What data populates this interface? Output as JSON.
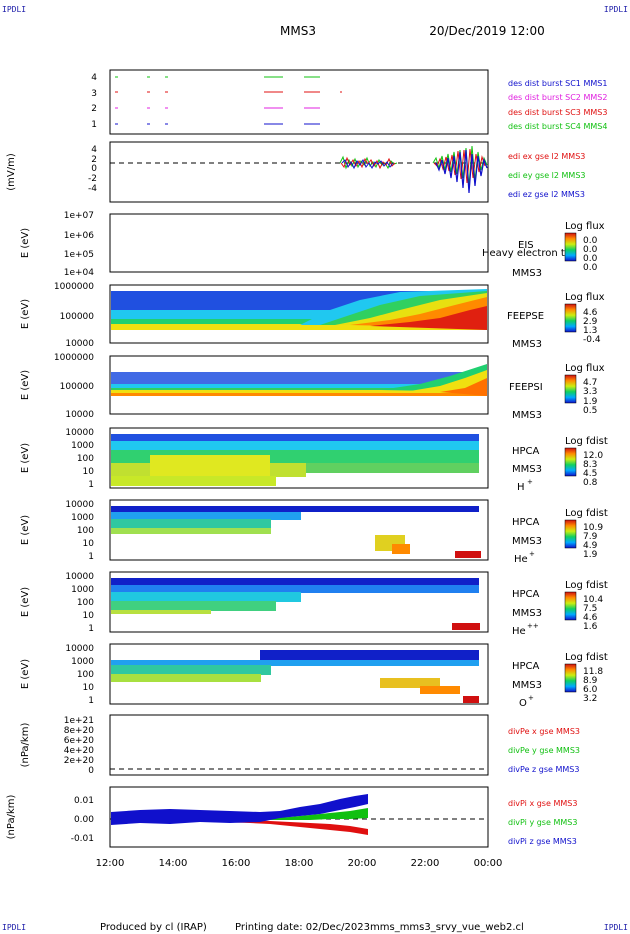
{
  "corners": {
    "top_left": "IPDLI",
    "top_right": "IPDLI",
    "bottom_left": "IPDLI",
    "bottom_right": "IPDLI"
  },
  "header": {
    "spacecraft": "MMS3",
    "datetime": "20/Dec/2019 12:00"
  },
  "footer": {
    "produced_by": "Produced by cl (IRAP)",
    "printing_date": "Printing date: 02/Dec/2023",
    "filename": "mms_mms3_srvy_vue_web2.cl"
  },
  "colors": {
    "blue": "#1010cc",
    "magenta": "#e020e0",
    "red": "#e01010",
    "green": "#10c010"
  },
  "x_axis": {
    "ticks": [
      "12:00",
      "14:00",
      "16:00",
      "18:00",
      "20:00",
      "22:00",
      "00:00"
    ]
  },
  "chart_data": [
    {
      "type": "scatter",
      "ylim": [
        0.5,
        4.5
      ],
      "yticks": [
        "1",
        "2",
        "3",
        "4"
      ],
      "legend": [
        {
          "text": "des dist burst SC1 MMS1",
          "color": "#1010cc"
        },
        {
          "text": "des dist burst SC2 MMS2",
          "color": "#e020e0"
        },
        {
          "text": "des dist burst SC3 MMS3",
          "color": "#e01010"
        },
        {
          "text": "des dist burst SC4 MMS4",
          "color": "#10c010"
        }
      ]
    },
    {
      "type": "line",
      "ylabel": "(mV/m)",
      "ylim": [
        -5,
        5
      ],
      "yticks": [
        "4",
        "2",
        "0",
        "-2",
        "-4"
      ],
      "legend": [
        {
          "text": "edi ex gse l2 MMS3",
          "color": "#e01010"
        },
        {
          "text": "edi ey gse l2 MMS3",
          "color": "#10c010"
        },
        {
          "text": "edi ez gse l2 MMS3",
          "color": "#1010cc"
        }
      ]
    },
    {
      "type": "heatmap",
      "ylabel": "E (eV)",
      "yticks": [
        "1e+07",
        "1e+06",
        "1e+05",
        "1e+04"
      ],
      "labels": [
        "EIS",
        "MMS3"
      ],
      "overlay": "Heavy electron to",
      "colorbar": {
        "title": "Log flux",
        "values": [
          "0.0",
          "0.0",
          "0.0",
          "0.0"
        ]
      }
    },
    {
      "type": "heatmap",
      "ylabel": "E (eV)",
      "yticks": [
        "1000000",
        "100000",
        "10000"
      ],
      "labels": [
        "FEEPSE",
        "MMS3"
      ],
      "colorbar": {
        "title": "Log flux",
        "values": [
          "4.6",
          "2.9",
          "1.3",
          "-0.4"
        ]
      }
    },
    {
      "type": "heatmap",
      "ylabel": "E (eV)",
      "yticks": [
        "1000000",
        "100000",
        "10000"
      ],
      "labels": [
        "FEEPSI",
        "MMS3"
      ],
      "colorbar": {
        "title": "Log flux",
        "values": [
          "4.7",
          "3.3",
          "1.9",
          "0.5"
        ]
      }
    },
    {
      "type": "heatmap",
      "ylabel": "E (eV)",
      "yticks": [
        "10000",
        "1000",
        "100",
        "10",
        "1"
      ],
      "labels": [
        "HPCA",
        "MMS3"
      ],
      "species": "H",
      "charge": "+",
      "colorbar": {
        "title": "Log fdist",
        "values": [
          "12.0",
          "8.3",
          "4.5",
          "0.8"
        ]
      }
    },
    {
      "type": "heatmap",
      "ylabel": "E (eV)",
      "yticks": [
        "10000",
        "1000",
        "100",
        "10",
        "1"
      ],
      "labels": [
        "HPCA",
        "MMS3"
      ],
      "species": "He",
      "charge": "+",
      "colorbar": {
        "title": "Log fdist",
        "values": [
          "10.9",
          "7.9",
          "4.9",
          "1.9"
        ]
      }
    },
    {
      "type": "heatmap",
      "ylabel": "E (eV)",
      "yticks": [
        "10000",
        "1000",
        "100",
        "10",
        "1"
      ],
      "labels": [
        "HPCA",
        "MMS3"
      ],
      "species": "He",
      "charge": "++",
      "colorbar": {
        "title": "Log fdist",
        "values": [
          "10.4",
          "7.5",
          "4.6",
          "1.6"
        ]
      }
    },
    {
      "type": "heatmap",
      "ylabel": "E (eV)",
      "yticks": [
        "10000",
        "1000",
        "100",
        "10",
        "1"
      ],
      "labels": [
        "HPCA",
        "MMS3"
      ],
      "species": "O",
      "charge": "+",
      "colorbar": {
        "title": "Log fdist",
        "values": [
          "11.8",
          "8.9",
          "6.0",
          "3.2"
        ]
      }
    },
    {
      "type": "line",
      "ylabel": "(nPa/km)",
      "yticks": [
        "1e+21",
        "8e+20",
        "6e+20",
        "4e+20",
        "2e+20",
        "0"
      ],
      "legend": [
        {
          "text": "divPe x gse MMS3",
          "color": "#e01010"
        },
        {
          "text": "divPe y gse MMS3",
          "color": "#10c010"
        },
        {
          "text": "divPe z gse MMS3",
          "color": "#1010cc"
        }
      ]
    },
    {
      "type": "line",
      "ylabel": "(nPa/km)",
      "ylim": [
        -0.015,
        0.015
      ],
      "yticks": [
        "0.01",
        "0.00",
        "-0.01"
      ],
      "legend": [
        {
          "text": "divPi x gse MMS3",
          "color": "#e01010"
        },
        {
          "text": "divPi y gse MMS3",
          "color": "#10c010"
        },
        {
          "text": "divPi z gse MMS3",
          "color": "#1010cc"
        }
      ]
    }
  ]
}
